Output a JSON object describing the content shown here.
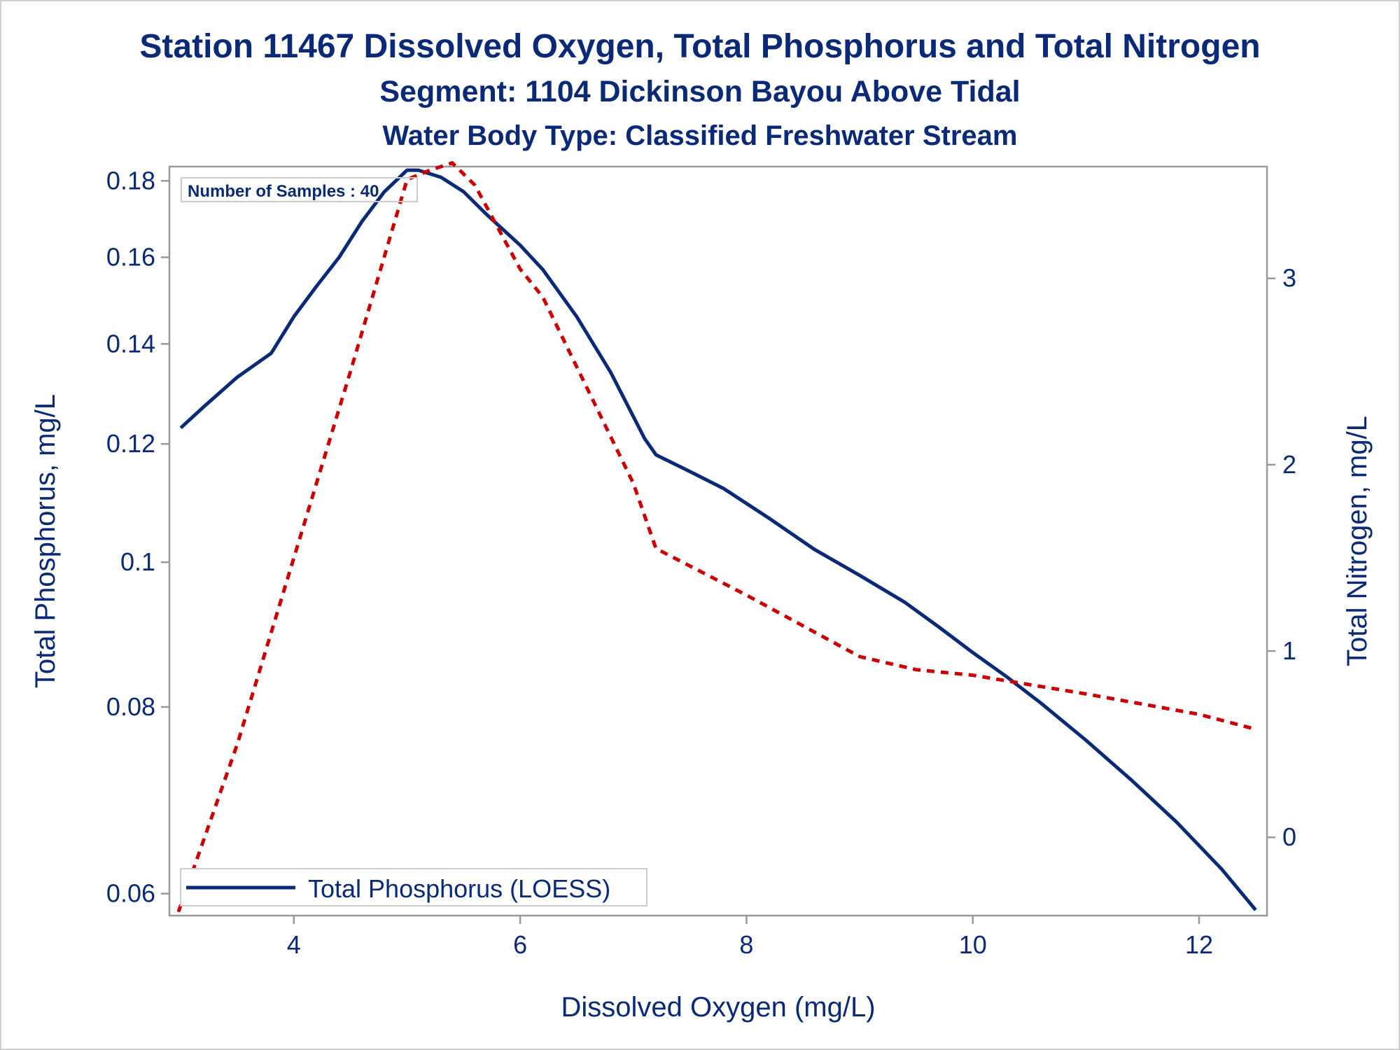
{
  "chart_data": {
    "type": "line",
    "title": "Station 11467  Dissolved Oxygen, Total Phosphorus and Total Nitrogen",
    "subtitle": "Segment: 1104  Dickinson Bayou Above Tidal",
    "subtitle2": "Water Body Type: Classified Freshwater Stream",
    "xlabel": "Dissolved Oxygen (mg/L)",
    "ylabel": "Total Phosphorus, mg/L",
    "y2label": "Total Nitrogen, mg/L",
    "xlim": [
      2.9,
      12.6
    ],
    "ylim": [
      0.058,
      0.184
    ],
    "yscale": "log",
    "y2lim": [
      -0.42,
      3.6
    ],
    "x_ticks": [
      "4",
      "6",
      "8",
      "10",
      "12"
    ],
    "y_ticks": [
      "0.06",
      "0.08",
      "0.1",
      "0.12",
      "0.14",
      "0.16",
      "0.18"
    ],
    "y2_ticks": [
      "0",
      "1",
      "2",
      "3"
    ],
    "inset_label": "Number of Samples : 40",
    "legend": {
      "label": "Total Phosphorus (LOESS)",
      "placement": "bottom-left"
    },
    "colors": {
      "phosphorus": "#0a2a78",
      "nitrogen": "#cc0000",
      "text": "#0a2a78",
      "frame": "#999999"
    },
    "series": [
      {
        "name": "Total Phosphorus (LOESS)",
        "axis": "left",
        "style": "solid",
        "color": "#0a2a78",
        "x": [
          3.0,
          3.2,
          3.5,
          3.8,
          4.0,
          4.2,
          4.4,
          4.6,
          4.8,
          5.0,
          5.1,
          5.3,
          5.5,
          5.7,
          6.0,
          6.2,
          6.5,
          6.8,
          7.1,
          7.2,
          7.5,
          7.8,
          8.2,
          8.6,
          9.0,
          9.4,
          9.7,
          10.0,
          10.3,
          10.6,
          11.0,
          11.4,
          11.8,
          12.2,
          12.5
        ],
        "y": [
          0.123,
          0.127,
          0.133,
          0.138,
          0.146,
          0.153,
          0.16,
          0.169,
          0.177,
          0.183,
          0.183,
          0.181,
          0.177,
          0.171,
          0.163,
          0.157,
          0.146,
          0.134,
          0.121,
          0.118,
          0.115,
          0.112,
          0.107,
          0.102,
          0.098,
          0.094,
          0.0905,
          0.087,
          0.0838,
          0.0805,
          0.076,
          0.0715,
          0.067,
          0.0623,
          0.0585
        ]
      },
      {
        "name": "Total Nitrogen",
        "axis": "right",
        "style": "dashed",
        "color": "#cc0000",
        "x": [
          2.98,
          3.5,
          4.0,
          4.5,
          5.0,
          5.2,
          5.4,
          5.6,
          6.0,
          6.2,
          6.6,
          7.0,
          7.2,
          8.0,
          9.0,
          9.5,
          10.0,
          10.5,
          11.0,
          12.0,
          12.5
        ],
        "y": [
          -0.4,
          0.5,
          1.5,
          2.5,
          3.53,
          3.58,
          3.62,
          3.5,
          3.05,
          2.9,
          2.4,
          1.9,
          1.55,
          1.3,
          0.97,
          0.9,
          0.87,
          0.82,
          0.77,
          0.66,
          0.58
        ]
      }
    ]
  }
}
